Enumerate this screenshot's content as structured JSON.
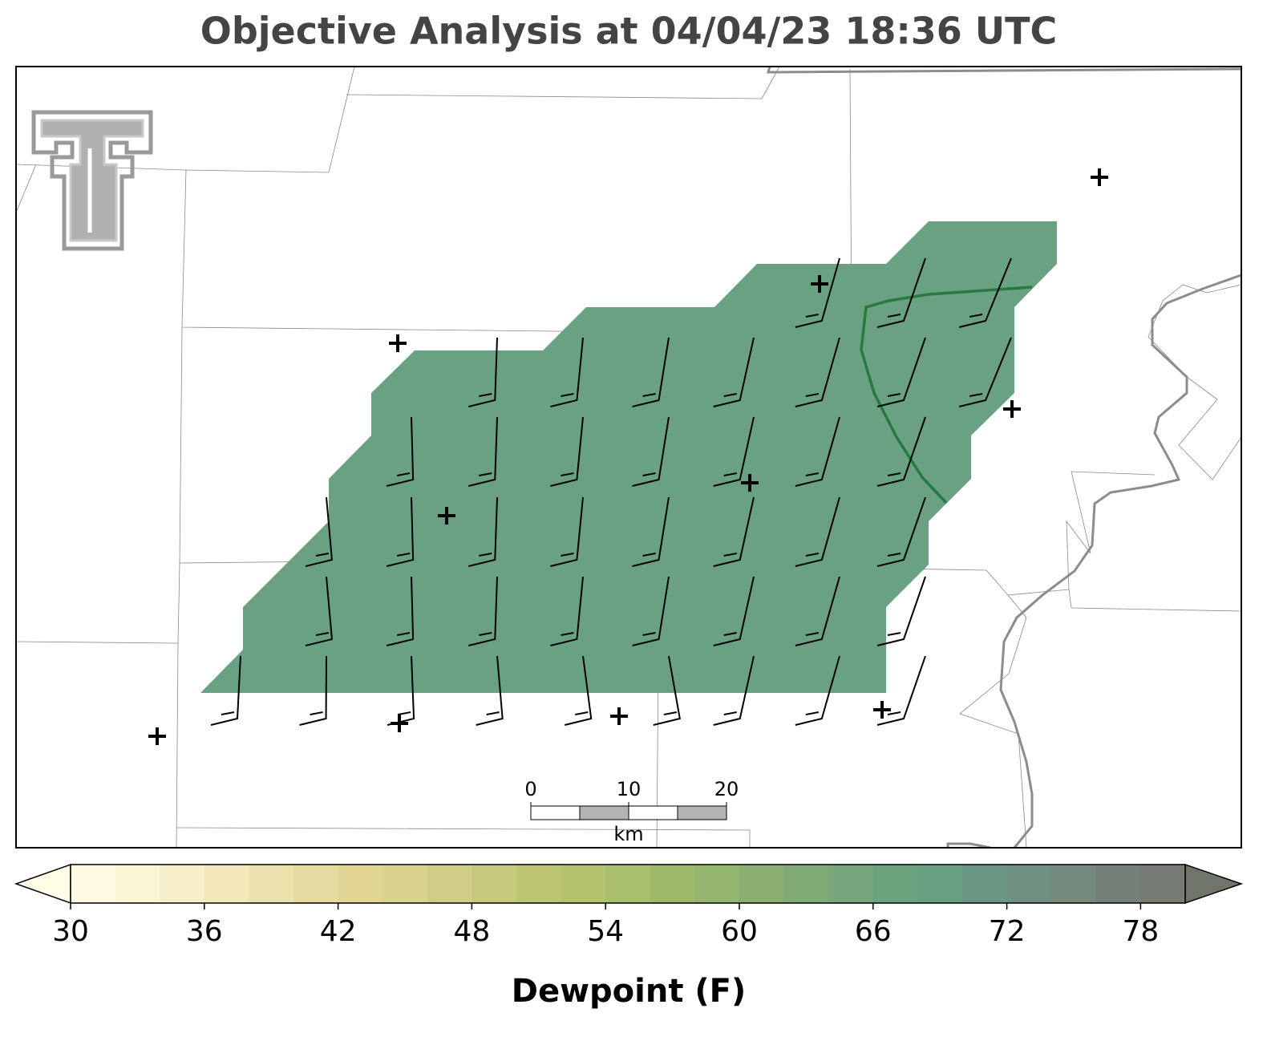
{
  "title": "Objective Analysis at 04/04/23 18:36 UTC",
  "colorbar": {
    "label": "Dewpoint (F)",
    "range": [
      30,
      80
    ],
    "ticks": [
      30,
      36,
      42,
      48,
      54,
      60,
      66,
      72,
      78
    ],
    "colors": [
      "#fffbe1",
      "#fbf6d6",
      "#f7efc8",
      "#f2e8bb",
      "#ede2ad",
      "#e7da9f",
      "#e2d594",
      "#dad28f",
      "#d0cd86",
      "#c7c97d",
      "#bcc574",
      "#b2c36c",
      "#a8bf6b",
      "#9eb96c",
      "#94b570",
      "#8aaf73",
      "#80ab76",
      "#76a67b",
      "#6da37f",
      "#689f83",
      "#6a9783",
      "#6f8f80",
      "#738a7d",
      "#757f78",
      "#767c74"
    ],
    "under_color": "#fffde6",
    "over_color": "#6f7669"
  },
  "scalebar": {
    "ticks": [
      0,
      10,
      20
    ],
    "unit": "km"
  }
}
